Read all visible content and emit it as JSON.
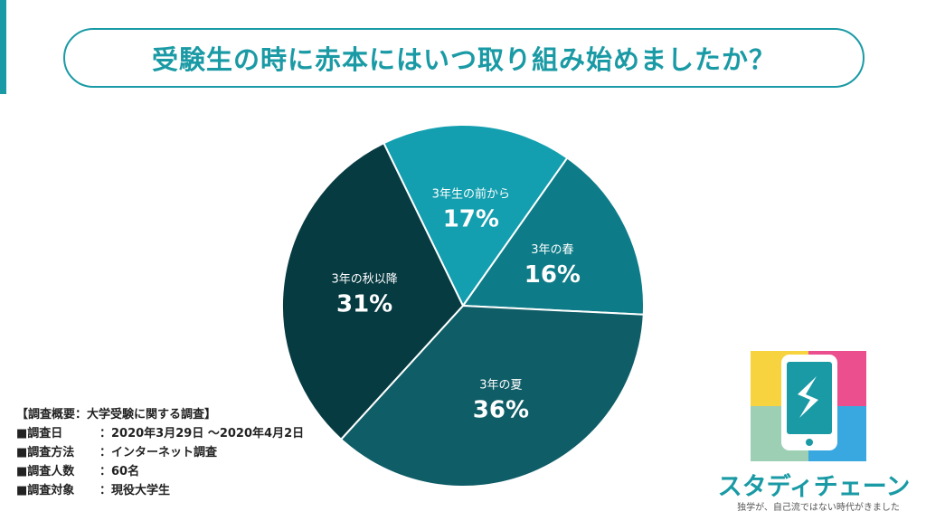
{
  "title": "受験生の時に赤本にはいつ取り組み始めましたか？",
  "chart_data": {
    "type": "pie",
    "slices": [
      {
        "label": "3年生の前から",
        "value": 17,
        "display": "17%",
        "color": "#139faf"
      },
      {
        "label": "3年の春",
        "value": 16,
        "display": "16%",
        "color": "#0e7c88"
      },
      {
        "label": "3年の夏",
        "value": 36,
        "display": "36%",
        "color": "#0f5d67"
      },
      {
        "label": "3年の秋以降",
        "value": 31,
        "display": "31%",
        "color": "#073b42"
      }
    ]
  },
  "survey": {
    "heading": "【調査概要：大学受験に関する調査】",
    "rows": [
      {
        "key": "■調査日",
        "value": "：2020年3月29日 〜2020年4月2日"
      },
      {
        "key": "■調査方法",
        "value": "：インターネット調査"
      },
      {
        "key": "■調査人数",
        "value": "：60名"
      },
      {
        "key": "■調査対象",
        "value": "：現役大学生"
      }
    ]
  },
  "brand": {
    "name": "スタディチェーン",
    "tagline": "独学が、自己流ではない時代がきました",
    "colors": {
      "yellow": "#f6d33f",
      "pink": "#ec4f8e",
      "green": "#9dcfb4",
      "blue": "#3aa8e0"
    }
  }
}
